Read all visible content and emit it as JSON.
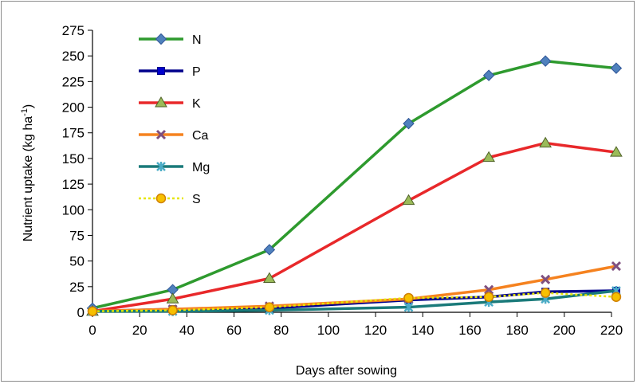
{
  "chart_data": {
    "type": "line",
    "xlabel": "Days after sowing",
    "ylabel": "Nutrient uptake (kg ha",
    "ylabel_sup": "-1",
    "ylabel_close": ")",
    "xlim": [
      0,
      220
    ],
    "ylim": [
      0,
      275
    ],
    "xticks": [
      0,
      20,
      40,
      60,
      80,
      100,
      120,
      140,
      160,
      180,
      200,
      220
    ],
    "yticks": [
      0,
      25,
      50,
      75,
      100,
      125,
      150,
      175,
      200,
      225,
      250,
      275
    ],
    "x": [
      0,
      34,
      75,
      134,
      168,
      192,
      222
    ],
    "grid": false,
    "legend_position": "top-left",
    "series": [
      {
        "name": "N",
        "color": "#2e9a2e",
        "marker": "diamond",
        "marker_color": "#4f81bd",
        "values": [
          4,
          22,
          61,
          184,
          231,
          245,
          238
        ]
      },
      {
        "name": "P",
        "color": "#00008b",
        "marker": "square",
        "marker_color": "#0000cd",
        "values": [
          1,
          3,
          4,
          12,
          15,
          20,
          21
        ]
      },
      {
        "name": "K",
        "color": "#e8282a",
        "marker": "triangle",
        "marker_color": "#9bbb59",
        "values": [
          1,
          13,
          33,
          109,
          151,
          165,
          156
        ]
      },
      {
        "name": "Ca",
        "color": "#f5821f",
        "marker": "x",
        "marker_color": "#7f4f7f",
        "values": [
          1,
          3,
          6,
          13,
          22,
          32,
          45
        ]
      },
      {
        "name": "Mg",
        "color": "#1a7a7a",
        "marker": "star",
        "marker_color": "#4bacc6",
        "values": [
          1,
          1,
          2,
          5,
          10,
          13,
          21
        ]
      },
      {
        "name": "S",
        "color": "#e6e600",
        "marker": "circle",
        "marker_color": "#f7c000",
        "dashed": true,
        "values": [
          1,
          2,
          5,
          14,
          15,
          19,
          15
        ]
      }
    ]
  }
}
